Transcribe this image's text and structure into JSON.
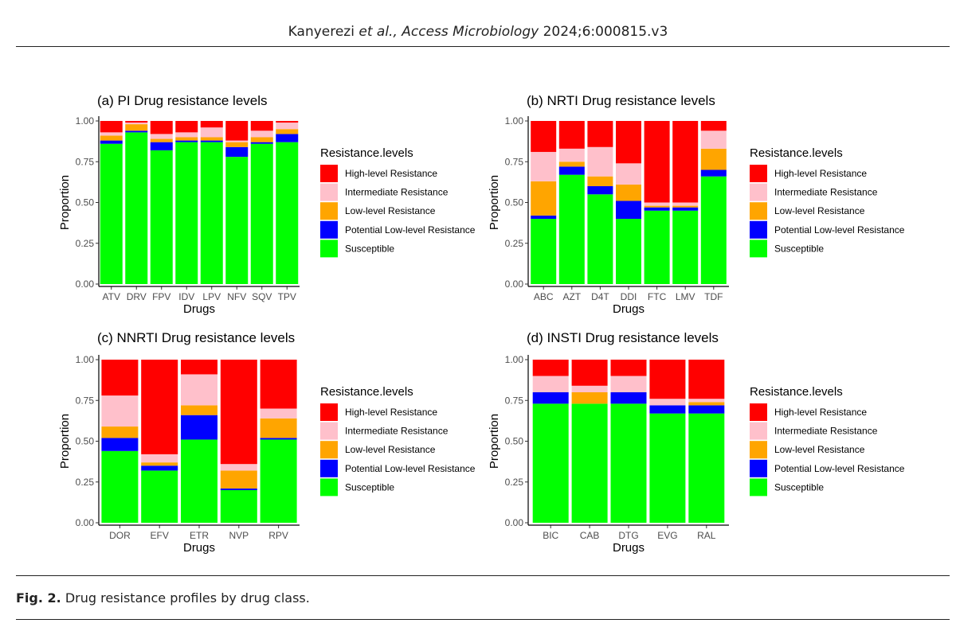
{
  "header": {
    "authors": "Kanyerezi",
    "etal": " et al.,",
    "journal": "Access Microbiology",
    "citation": " 2024;6:000815.v3"
  },
  "caption": {
    "label": "Fig. 2.",
    "text": " Drug resistance profiles by drug class."
  },
  "colors": {
    "High-level Resistance": "#ff0000",
    "Intermediate Resistance": "#ffc0cb",
    "Low-level Resistance": "#ffa500",
    "Potential Low-level Resistance": "#0000ff",
    "Susceptible": "#00ff00"
  },
  "chart_data": [
    {
      "type": "bar",
      "stacked": true,
      "title": "(a) PI Drug resistance levels",
      "xlabel": "Drugs",
      "ylabel": "Proportion",
      "ylim": [
        0,
        1
      ],
      "yticks": [
        "0.00",
        "0.25",
        "0.50",
        "0.75",
        "1.00"
      ],
      "legend_title": "Resistance.levels",
      "categories": [
        "ATV",
        "DRV",
        "FPV",
        "IDV",
        "LPV",
        "NFV",
        "SQV",
        "TPV"
      ],
      "series": [
        {
          "name": "Susceptible",
          "values": [
            0.86,
            0.93,
            0.82,
            0.87,
            0.87,
            0.78,
            0.86,
            0.87
          ]
        },
        {
          "name": "Potential Low-level Resistance",
          "values": [
            0.02,
            0.01,
            0.05,
            0.01,
            0.01,
            0.06,
            0.01,
            0.05
          ]
        },
        {
          "name": "Low-level Resistance",
          "values": [
            0.03,
            0.04,
            0.02,
            0.02,
            0.02,
            0.03,
            0.03,
            0.03
          ]
        },
        {
          "name": "Intermediate Resistance",
          "values": [
            0.02,
            0.01,
            0.03,
            0.03,
            0.06,
            0.01,
            0.04,
            0.04
          ]
        },
        {
          "name": "High-level Resistance",
          "values": [
            0.07,
            0.01,
            0.08,
            0.07,
            0.04,
            0.12,
            0.06,
            0.01
          ]
        }
      ]
    },
    {
      "type": "bar",
      "stacked": true,
      "title": "(b) NRTI Drug resistance levels",
      "xlabel": "Drugs",
      "ylabel": "Proportion",
      "ylim": [
        0,
        1
      ],
      "yticks": [
        "0.00",
        "0.25",
        "0.50",
        "0.75",
        "1.00"
      ],
      "legend_title": "Resistance.levels",
      "categories": [
        "ABC",
        "AZT",
        "D4T",
        "DDI",
        "FTC",
        "LMV",
        "TDF"
      ],
      "series": [
        {
          "name": "Susceptible",
          "values": [
            0.4,
            0.67,
            0.55,
            0.4,
            0.45,
            0.45,
            0.66
          ]
        },
        {
          "name": "Potential Low-level Resistance",
          "values": [
            0.02,
            0.05,
            0.05,
            0.11,
            0.02,
            0.02,
            0.04
          ]
        },
        {
          "name": "Low-level Resistance",
          "values": [
            0.21,
            0.03,
            0.06,
            0.1,
            0.01,
            0.01,
            0.13
          ]
        },
        {
          "name": "Intermediate Resistance",
          "values": [
            0.18,
            0.08,
            0.18,
            0.13,
            0.02,
            0.02,
            0.11
          ]
        },
        {
          "name": "High-level Resistance",
          "values": [
            0.19,
            0.17,
            0.16,
            0.26,
            0.5,
            0.5,
            0.06
          ]
        }
      ]
    },
    {
      "type": "bar",
      "stacked": true,
      "title": "(c) NNRTI Drug resistance levels",
      "xlabel": "Drugs",
      "ylabel": "Proportion",
      "ylim": [
        0,
        1
      ],
      "yticks": [
        "0.00",
        "0.25",
        "0.50",
        "0.75",
        "1.00"
      ],
      "legend_title": "Resistance.levels",
      "categories": [
        "DOR",
        "EFV",
        "ETR",
        "NVP",
        "RPV"
      ],
      "series": [
        {
          "name": "Susceptible",
          "values": [
            0.44,
            0.32,
            0.51,
            0.2,
            0.51
          ]
        },
        {
          "name": "Potential Low-level Resistance",
          "values": [
            0.08,
            0.03,
            0.15,
            0.01,
            0.01
          ]
        },
        {
          "name": "Low-level Resistance",
          "values": [
            0.07,
            0.02,
            0.06,
            0.11,
            0.12
          ]
        },
        {
          "name": "Intermediate Resistance",
          "values": [
            0.19,
            0.05,
            0.19,
            0.04,
            0.06
          ]
        },
        {
          "name": "High-level Resistance",
          "values": [
            0.22,
            0.58,
            0.09,
            0.64,
            0.3
          ]
        }
      ]
    },
    {
      "type": "bar",
      "stacked": true,
      "title": "(d) INSTI Drug resistance levels",
      "xlabel": "Drugs",
      "ylabel": "Proportion",
      "ylim": [
        0,
        1
      ],
      "yticks": [
        "0.00",
        "0.25",
        "0.50",
        "0.75",
        "1.00"
      ],
      "legend_title": "Resistance.levels",
      "categories": [
        "BIC",
        "CAB",
        "DTG",
        "EVG",
        "RAL"
      ],
      "series": [
        {
          "name": "Susceptible",
          "values": [
            0.73,
            0.73,
            0.73,
            0.67,
            0.67
          ]
        },
        {
          "name": "Potential Low-level Resistance",
          "values": [
            0.07,
            0.0,
            0.07,
            0.05,
            0.05
          ]
        },
        {
          "name": "Low-level Resistance",
          "values": [
            0.0,
            0.07,
            0.0,
            0.0,
            0.02
          ]
        },
        {
          "name": "Intermediate Resistance",
          "values": [
            0.1,
            0.04,
            0.1,
            0.04,
            0.02
          ]
        },
        {
          "name": "High-level Resistance",
          "values": [
            0.1,
            0.16,
            0.1,
            0.24,
            0.24
          ]
        }
      ]
    }
  ]
}
